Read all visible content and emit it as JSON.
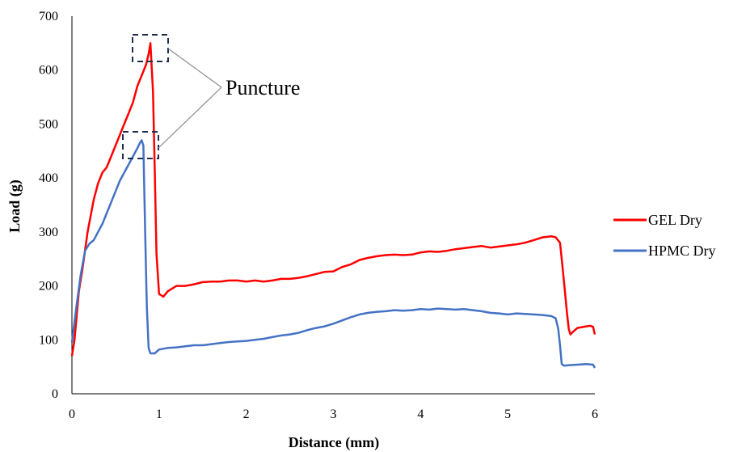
{
  "chart_data": {
    "type": "line",
    "xlabel": "Distance (mm)",
    "ylabel": "Load (g)",
    "xlim": [
      0,
      6
    ],
    "ylim": [
      0,
      700
    ],
    "xticks": [
      "0",
      "1",
      "2",
      "3",
      "4",
      "5",
      "6"
    ],
    "yticks": [
      "0",
      "100",
      "200",
      "300",
      "400",
      "500",
      "600",
      "700"
    ],
    "grid": false,
    "legend_position": "right",
    "annotation": "Puncture",
    "series": [
      {
        "name": "GEL Dry",
        "color": "#ff0000",
        "x": [
          0.0,
          0.03,
          0.08,
          0.12,
          0.18,
          0.25,
          0.3,
          0.35,
          0.4,
          0.45,
          0.5,
          0.55,
          0.6,
          0.65,
          0.7,
          0.75,
          0.8,
          0.85,
          0.88,
          0.9,
          0.93,
          0.95,
          0.97,
          1.0,
          1.05,
          1.1,
          1.2,
          1.3,
          1.4,
          1.5,
          1.6,
          1.7,
          1.8,
          1.9,
          2.0,
          2.1,
          2.2,
          2.3,
          2.4,
          2.5,
          2.6,
          2.7,
          2.8,
          2.9,
          3.0,
          3.1,
          3.2,
          3.3,
          3.4,
          3.5,
          3.6,
          3.7,
          3.8,
          3.9,
          4.0,
          4.1,
          4.2,
          4.3,
          4.4,
          4.5,
          4.6,
          4.7,
          4.8,
          4.9,
          5.0,
          5.1,
          5.2,
          5.3,
          5.4,
          5.5,
          5.55,
          5.6,
          5.62,
          5.65,
          5.68,
          5.7,
          5.72,
          5.75,
          5.8,
          5.9,
          5.95,
          5.98,
          6.0
        ],
        "y": [
          70,
          100,
          190,
          230,
          300,
          360,
          390,
          410,
          420,
          440,
          460,
          480,
          500,
          520,
          540,
          570,
          590,
          610,
          630,
          650,
          560,
          420,
          260,
          185,
          180,
          190,
          200,
          200,
          203,
          207,
          208,
          208,
          210,
          210,
          208,
          210,
          208,
          210,
          213,
          213,
          215,
          218,
          222,
          226,
          227,
          235,
          240,
          248,
          252,
          255,
          257,
          258,
          257,
          258,
          262,
          264,
          263,
          265,
          268,
          270,
          272,
          274,
          271,
          273,
          275,
          277,
          280,
          285,
          290,
          292,
          290,
          280,
          250,
          200,
          150,
          120,
          110,
          115,
          122,
          125,
          126,
          124,
          110
        ]
      },
      {
        "name": "HPMC Dry",
        "color": "#4472c4",
        "x": [
          0.0,
          0.05,
          0.1,
          0.15,
          0.2,
          0.25,
          0.3,
          0.35,
          0.4,
          0.45,
          0.5,
          0.55,
          0.6,
          0.65,
          0.7,
          0.75,
          0.78,
          0.8,
          0.82,
          0.84,
          0.86,
          0.88,
          0.9,
          0.95,
          1.0,
          1.1,
          1.2,
          1.3,
          1.4,
          1.5,
          1.6,
          1.7,
          1.8,
          1.9,
          2.0,
          2.1,
          2.2,
          2.3,
          2.4,
          2.5,
          2.6,
          2.7,
          2.8,
          2.9,
          3.0,
          3.1,
          3.2,
          3.3,
          3.4,
          3.5,
          3.6,
          3.7,
          3.8,
          3.9,
          4.0,
          4.1,
          4.2,
          4.3,
          4.4,
          4.5,
          4.6,
          4.7,
          4.8,
          4.9,
          5.0,
          5.1,
          5.2,
          5.3,
          5.4,
          5.5,
          5.55,
          5.58,
          5.6,
          5.62,
          5.65,
          5.7,
          5.8,
          5.9,
          5.98,
          6.0
        ],
        "y": [
          95,
          160,
          220,
          265,
          278,
          285,
          300,
          315,
          335,
          355,
          375,
          395,
          410,
          425,
          440,
          455,
          465,
          470,
          460,
          300,
          160,
          85,
          75,
          75,
          82,
          85,
          86,
          88,
          90,
          90,
          92,
          94,
          96,
          97,
          98,
          100,
          102,
          105,
          108,
          110,
          113,
          118,
          122,
          125,
          130,
          136,
          142,
          147,
          150,
          152,
          153,
          155,
          154,
          155,
          157,
          156,
          158,
          157,
          156,
          157,
          155,
          153,
          150,
          149,
          147,
          149,
          148,
          147,
          146,
          144,
          140,
          120,
          90,
          55,
          52,
          53,
          54,
          55,
          54,
          48
        ]
      }
    ]
  }
}
